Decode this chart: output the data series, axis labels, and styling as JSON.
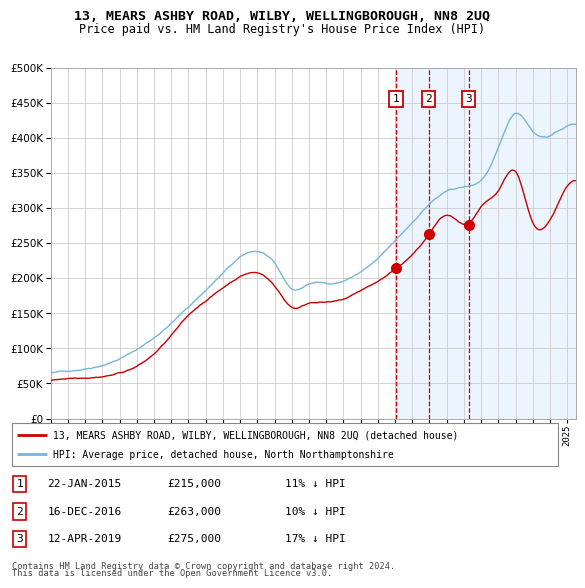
{
  "title": "13, MEARS ASHBY ROAD, WILBY, WELLINGBOROUGH, NN8 2UQ",
  "subtitle": "Price paid vs. HM Land Registry's House Price Index (HPI)",
  "legend_line1": "13, MEARS ASHBY ROAD, WILBY, WELLINGBOROUGH, NN8 2UQ (detached house)",
  "legend_line2": "HPI: Average price, detached house, North Northamptonshire",
  "footnote1": "Contains HM Land Registry data © Crown copyright and database right 2024.",
  "footnote2": "This data is licensed under the Open Government Licence v3.0.",
  "transactions": [
    {
      "num": 1,
      "date": "22-JAN-2015",
      "price": 215000,
      "pct": "11%",
      "x_year": 2015.05
    },
    {
      "num": 2,
      "date": "16-DEC-2016",
      "price": 263000,
      "pct": "10%",
      "x_year": 2016.96
    },
    {
      "num": 3,
      "date": "12-APR-2019",
      "price": 275000,
      "pct": "17%",
      "x_year": 2019.28
    }
  ],
  "hpi_color": "#7ab4d8",
  "house_color": "#cc0000",
  "vline_color": "#cc0000",
  "dot_color": "#cc0000",
  "bg_shaded_color": "#ddeeff",
  "grid_color": "#cccccc",
  "ylim": [
    0,
    500000
  ],
  "xlim_start": 1995,
  "xlim_end": 2025.5,
  "hpi_knots_x": [
    1995,
    1997,
    1999,
    2001,
    2003,
    2005,
    2007,
    2008,
    2009,
    2010,
    2011,
    2012,
    2013,
    2014,
    2015,
    2016,
    2017,
    2018,
    2019,
    2020,
    2021,
    2022,
    2023,
    2024,
    2025.5
  ],
  "hpi_knots_y": [
    65000,
    72000,
    88000,
    118000,
    162000,
    210000,
    240000,
    222000,
    185000,
    192000,
    193000,
    197000,
    210000,
    228000,
    252000,
    278000,
    305000,
    322000,
    328000,
    338000,
    382000,
    432000,
    408000,
    402000,
    418000
  ],
  "house_knots_x": [
    1995,
    1997,
    1999,
    2001,
    2003,
    2005,
    2007,
    2008,
    2009,
    2010,
    2011,
    2012,
    2013,
    2014,
    2015.05,
    2016.96,
    2018,
    2019.28,
    2020,
    2021,
    2022,
    2023,
    2024,
    2025.5
  ],
  "house_knots_y": [
    54000,
    60000,
    68000,
    95000,
    148000,
    188000,
    210000,
    192000,
    162000,
    168000,
    170000,
    173000,
    185000,
    198000,
    215000,
    263000,
    290000,
    275000,
    298000,
    320000,
    348000,
    275000,
    278000,
    335000
  ]
}
